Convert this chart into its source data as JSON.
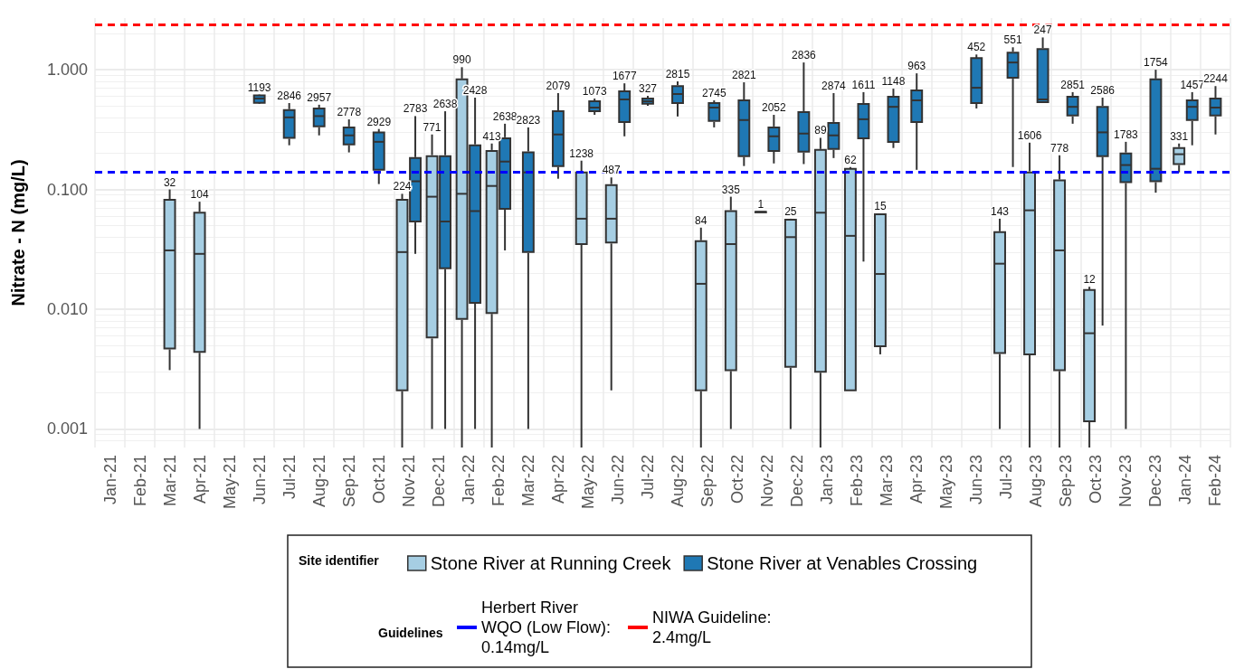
{
  "chart_data": {
    "type": "box",
    "ylabel": "Nitrate - N (mg/L)",
    "legend_title": "Site identifier",
    "annotations": [
      "Guidelines"
    ],
    "categories": [
      "Jan-21",
      "Feb-21",
      "Mar-21",
      "Apr-21",
      "May-21",
      "Jun-21",
      "Jul-21",
      "Aug-21",
      "Sep-21",
      "Oct-21",
      "Nov-21",
      "Dec-21",
      "Jan-22",
      "Feb-22",
      "Mar-22",
      "Apr-22",
      "May-22",
      "Jun-22",
      "Jul-22",
      "Aug-22",
      "Sep-22",
      "Oct-22",
      "Nov-22",
      "Dec-22",
      "Jan-23",
      "Feb-23",
      "Mar-23",
      "Apr-23",
      "May-23",
      "Jun-23",
      "Jul-23",
      "Aug-23",
      "Sep-23",
      "Oct-23",
      "Nov-23",
      "Dec-23",
      "Jan-24",
      "Feb-24"
    ],
    "log": "y",
    "ylim": [
      0.0007,
      2.7
    ],
    "yticks": [
      0.001,
      {
        "value": 0.01,
        "label": "0.010"
      },
      {
        "value": 0.1,
        "label": "0.100"
      },
      {
        "value": 1,
        "label": "1.000"
      }
    ],
    "grid": true,
    "legend": "bottom",
    "series": [
      {
        "name": "Stone River at Running Creek",
        "color": "#a6cee3",
        "boxes": [
          null,
          null,
          {
            "low": 0.0031,
            "q1": 0.0047,
            "median": 0.031,
            "q3": 0.082,
            "high": 0.1
          },
          {
            "low": 0.001,
            "q1": 0.0044,
            "median": 0.029,
            "q3": 0.064,
            "high": 0.079
          },
          null,
          null,
          null,
          null,
          null,
          null,
          {
            "low": 0.0007,
            "q1": 0.0021,
            "median": 0.03,
            "q3": 0.082,
            "high": 0.092
          },
          {
            "low": 0.001,
            "q1": 0.0058,
            "median": 0.087,
            "q3": 0.19,
            "high": 0.288
          },
          {
            "low": 0.0007,
            "q1": 0.0083,
            "median": 0.092,
            "q3": 0.83,
            "high": 1.05
          },
          {
            "low": 0.0007,
            "q1": 0.0093,
            "median": 0.107,
            "q3": 0.21,
            "high": 0.242
          },
          null,
          null,
          {
            "low": 0.0007,
            "q1": 0.035,
            "median": 0.057,
            "q3": 0.139,
            "high": 0.174
          },
          {
            "low": 0.0021,
            "q1": 0.036,
            "median": 0.057,
            "q3": 0.109,
            "high": 0.126
          },
          null,
          null,
          {
            "low": 0.0007,
            "q1": 0.0021,
            "median": 0.0163,
            "q3": 0.037,
            "high": 0.048
          },
          {
            "low": 0.001,
            "q1": 0.0031,
            "median": 0.035,
            "q3": 0.066,
            "high": 0.087
          },
          {
            "low": 0.065,
            "q1": 0.065,
            "median": 0.065,
            "q3": 0.065,
            "high": 0.065
          },
          {
            "low": 0.001,
            "q1": 0.0033,
            "median": 0.04,
            "q3": 0.056,
            "high": 0.057
          },
          {
            "low": 0.0007,
            "q1": 0.003,
            "median": 0.064,
            "q3": 0.214,
            "high": 0.27
          },
          {
            "low": 0.0021,
            "q1": 0.0021,
            "median": 0.041,
            "q3": 0.149,
            "high": 0.154
          },
          {
            "low": 0.0042,
            "q1": 0.0049,
            "median": 0.0197,
            "q3": 0.062,
            "high": 0.063
          },
          null,
          null,
          null,
          {
            "low": 0.001,
            "q1": 0.0043,
            "median": 0.024,
            "q3": 0.044,
            "high": 0.057
          },
          {
            "low": 0.0007,
            "q1": 0.0042,
            "median": 0.067,
            "q3": 0.139,
            "high": 0.246
          },
          {
            "low": 0.0007,
            "q1": 0.0031,
            "median": 0.031,
            "q3": 0.119,
            "high": 0.193
          },
          {
            "low": 0.0007,
            "q1": 0.00116,
            "median": 0.0063,
            "q3": 0.0145,
            "high": 0.0154
          },
          null,
          null,
          {
            "low": 0.139,
            "q1": 0.163,
            "median": 0.197,
            "q3": 0.222,
            "high": 0.242
          },
          null
        ],
        "value_labels": [
          null,
          null,
          "32",
          "104",
          null,
          null,
          null,
          null,
          null,
          null,
          "224",
          "771",
          "990",
          "413",
          null,
          null,
          "1238",
          "487",
          null,
          null,
          "84",
          "335",
          "1",
          "25",
          "89",
          "62",
          "15",
          null,
          null,
          null,
          "143",
          "1606",
          "778",
          "12",
          null,
          null,
          "331",
          null
        ]
      },
      {
        "name": "Stone River at Venables Crossing",
        "color": "#1f78b4",
        "boxes": [
          null,
          null,
          null,
          null,
          null,
          {
            "low": 0.52,
            "q1": 0.53,
            "median": 0.575,
            "q3": 0.61,
            "high": 0.62
          },
          {
            "low": 0.234,
            "q1": 0.27,
            "median": 0.4,
            "q3": 0.46,
            "high": 0.527
          },
          {
            "low": 0.283,
            "q1": 0.336,
            "median": 0.41,
            "q3": 0.475,
            "high": 0.51
          },
          {
            "low": 0.204,
            "q1": 0.238,
            "median": 0.283,
            "q3": 0.33,
            "high": 0.385
          },
          {
            "low": 0.111,
            "q1": 0.146,
            "median": 0.25,
            "q3": 0.3,
            "high": 0.32
          },
          {
            "low": 0.029,
            "q1": 0.054,
            "median": 0.117,
            "q3": 0.183,
            "high": 0.41
          },
          {
            "low": 0.001,
            "q1": 0.022,
            "median": 0.054,
            "q3": 0.19,
            "high": 0.45
          },
          {
            "low": 0.001,
            "q1": 0.0113,
            "median": 0.066,
            "q3": 0.234,
            "high": 0.585
          },
          {
            "low": 0.031,
            "q1": 0.069,
            "median": 0.171,
            "q3": 0.268,
            "high": 0.354
          },
          {
            "low": 0.001,
            "q1": 0.03,
            "median": 0.139,
            "q3": 0.204,
            "high": 0.33
          },
          {
            "low": 0.123,
            "q1": 0.157,
            "median": 0.288,
            "q3": 0.45,
            "high": 0.638
          },
          {
            "low": 0.42,
            "q1": 0.45,
            "median": 0.483,
            "q3": 0.545,
            "high": 0.575
          },
          {
            "low": 0.278,
            "q1": 0.366,
            "median": 0.565,
            "q3": 0.66,
            "high": 0.77
          },
          {
            "low": 0.5,
            "q1": 0.52,
            "median": 0.545,
            "q3": 0.575,
            "high": 0.605
          },
          {
            "low": 0.407,
            "q1": 0.527,
            "median": 0.627,
            "q3": 0.73,
            "high": 0.8
          },
          {
            "low": 0.33,
            "q1": 0.373,
            "median": 0.483,
            "q3": 0.527,
            "high": 0.555
          },
          {
            "low": 0.157,
            "q1": 0.19,
            "median": 0.38,
            "q3": 0.555,
            "high": 0.785
          },
          {
            "low": 0.165,
            "q1": 0.21,
            "median": 0.278,
            "q3": 0.33,
            "high": 0.42
          },
          {
            "low": 0.163,
            "q1": 0.207,
            "median": 0.293,
            "q3": 0.443,
            "high": 1.15
          },
          {
            "low": 0.183,
            "q1": 0.218,
            "median": 0.283,
            "q3": 0.36,
            "high": 0.638
          },
          {
            "low": 0.025,
            "q1": 0.268,
            "median": 0.386,
            "q3": 0.518,
            "high": 0.65
          },
          {
            "low": 0.222,
            "q1": 0.25,
            "median": 0.49,
            "q3": 0.595,
            "high": 0.695
          },
          {
            "low": 0.146,
            "q1": 0.366,
            "median": 0.555,
            "q3": 0.672,
            "high": 0.933
          },
          null,
          {
            "low": 0.475,
            "q1": 0.527,
            "median": 0.707,
            "q3": 1.25,
            "high": 1.34
          },
          {
            "low": 0.154,
            "q1": 0.856,
            "median": 1.15,
            "q3": 1.39,
            "high": 1.54
          },
          {
            "low": 0.536,
            "q1": 0.536,
            "median": 0.565,
            "q3": 1.49,
            "high": 1.86
          },
          {
            "low": 0.354,
            "q1": 0.414,
            "median": 0.49,
            "q3": 0.595,
            "high": 0.65
          },
          {
            "low": 0.0073,
            "q1": 0.19,
            "median": 0.3,
            "q3": 0.49,
            "high": 0.585
          },
          {
            "low": 0.001,
            "q1": 0.115,
            "median": 0.16,
            "q3": 0.2,
            "high": 0.25
          },
          {
            "low": 0.094,
            "q1": 0.117,
            "median": 0.149,
            "q3": 0.83,
            "high": 1.0
          },
          {
            "low": 0.234,
            "q1": 0.38,
            "median": 0.49,
            "q3": 0.555,
            "high": 0.65
          },
          {
            "low": 0.288,
            "q1": 0.414,
            "median": 0.483,
            "q3": 0.575,
            "high": 0.73
          }
        ],
        "value_labels": [
          null,
          null,
          null,
          null,
          null,
          "1193",
          "2846",
          "2957",
          "2778",
          "2929",
          "2783",
          "2638",
          "2428",
          "2638",
          "2823",
          "2079",
          "1073",
          "1677",
          "327",
          "2815",
          "2745",
          "2821",
          "2052",
          "2836",
          "2874",
          "1611",
          "1148",
          "963",
          null,
          "452",
          "551",
          "247",
          "2851",
          "2586",
          "1783",
          "1754",
          "1457",
          "2244"
        ]
      }
    ],
    "ref_lines": [
      {
        "axis": "y",
        "value": 0.14,
        "label": "Herbert River WQO (Low Flow): 0.14mg/L",
        "color": "#0000ff",
        "line_style": "dashed"
      },
      {
        "axis": "y",
        "value": 2.4,
        "label": "NIWA Guideline: 2.4mg/L",
        "color": "#ff0000",
        "line_style": "dashed"
      }
    ]
  }
}
